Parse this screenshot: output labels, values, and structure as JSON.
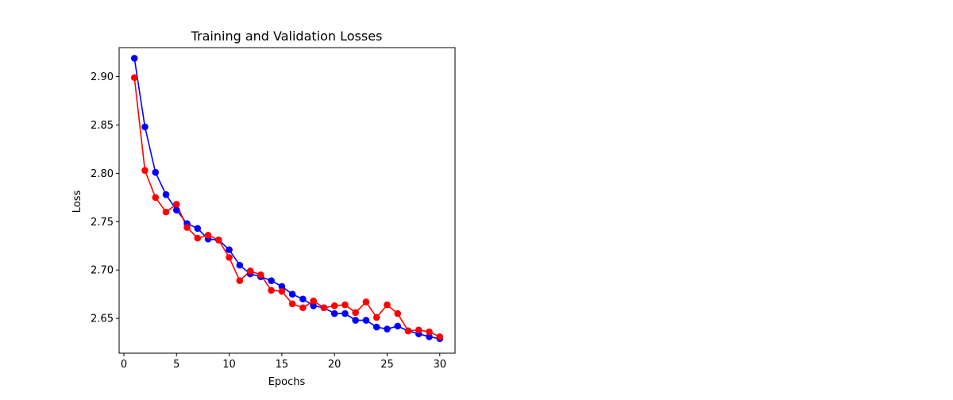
{
  "chart_data": {
    "type": "line",
    "title": "Training and Validation Losses",
    "xlabel": "Epochs",
    "ylabel": "Loss",
    "xlim": [
      -0.45,
      31.45
    ],
    "ylim": [
      2.614,
      2.93
    ],
    "xticks": [
      0,
      5,
      10,
      15,
      20,
      25,
      30
    ],
    "xtick_labels": [
      "0",
      "5",
      "10",
      "15",
      "20",
      "25",
      "30"
    ],
    "yticks": [
      2.65,
      2.7,
      2.75,
      2.8,
      2.85,
      2.9
    ],
    "ytick_labels": [
      "2.65",
      "2.70",
      "2.75",
      "2.80",
      "2.85",
      "2.90"
    ],
    "grid": false,
    "x": [
      1,
      2,
      3,
      4,
      5,
      6,
      7,
      8,
      9,
      10,
      11,
      12,
      13,
      14,
      15,
      16,
      17,
      18,
      19,
      20,
      21,
      22,
      23,
      24,
      25,
      26,
      27,
      28,
      29,
      30
    ],
    "series": [
      {
        "color": "#0000ff",
        "values": [
          2.919,
          2.848,
          2.801,
          2.778,
          2.762,
          2.748,
          2.743,
          2.732,
          2.731,
          2.721,
          2.705,
          2.696,
          2.693,
          2.689,
          2.683,
          2.675,
          2.67,
          2.663,
          2.661,
          2.655,
          2.655,
          2.648,
          2.648,
          2.641,
          2.639,
          2.642,
          2.637,
          2.634,
          2.631,
          2.629
        ]
      },
      {
        "color": "#ff0000",
        "values": [
          2.899,
          2.803,
          2.775,
          2.76,
          2.768,
          2.744,
          2.733,
          2.736,
          2.731,
          2.713,
          2.689,
          2.699,
          2.695,
          2.679,
          2.678,
          2.665,
          2.661,
          2.668,
          2.661,
          2.663,
          2.664,
          2.656,
          2.667,
          2.651,
          2.664,
          2.655,
          2.637,
          2.638,
          2.636,
          2.631
        ]
      }
    ]
  }
}
